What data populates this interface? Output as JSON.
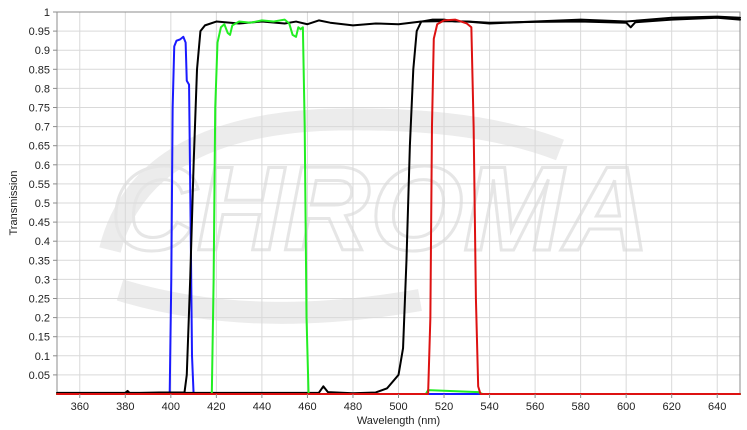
{
  "chart_data": {
    "type": "line",
    "title": "",
    "xlabel": "Wavelength (nm)",
    "ylabel": "Transmission",
    "xlim": [
      350,
      650
    ],
    "ylim": [
      0,
      1
    ],
    "grid": true,
    "legend": "none",
    "x_ticks": [
      360,
      380,
      400,
      420,
      440,
      460,
      480,
      500,
      520,
      540,
      560,
      580,
      600,
      620,
      640
    ],
    "y_ticks": [
      0.05,
      0.1,
      0.15,
      0.2,
      0.25,
      0.3,
      0.35,
      0.4,
      0.45,
      0.5,
      0.55,
      0.6,
      0.65,
      0.7,
      0.75,
      0.8,
      0.85,
      0.9,
      0.95,
      1
    ],
    "y_tick_labels": [
      "0.05",
      "0.1",
      "0.15",
      "0.2",
      "0.25",
      "0.3",
      "0.35",
      "0.4",
      "0.45",
      "0.5",
      "0.55",
      "0.6",
      "0.65",
      "0.7",
      "0.75",
      "0.8",
      "0.85",
      "0.9",
      "0.95",
      "1"
    ],
    "watermark": "CHROMA",
    "series": [
      {
        "color": "#1a1aff",
        "points": [
          [
            350,
            0.0
          ],
          [
            399.5,
            0.0
          ],
          [
            400.2,
            0.3
          ],
          [
            400.8,
            0.75
          ],
          [
            401.5,
            0.91
          ],
          [
            402.5,
            0.925
          ],
          [
            404,
            0.928
          ],
          [
            405.5,
            0.935
          ],
          [
            406.5,
            0.92
          ],
          [
            407,
            0.82
          ],
          [
            408,
            0.81
          ],
          [
            408.6,
            0.5
          ],
          [
            409.3,
            0.1
          ],
          [
            410,
            0.0
          ],
          [
            650,
            0.0
          ]
        ]
      },
      {
        "color": "#000000",
        "points": [
          [
            350,
            0.0
          ],
          [
            380,
            0.003
          ],
          [
            381,
            0.008
          ],
          [
            382,
            0.002
          ],
          [
            395,
            0.004
          ],
          [
            406,
            0.004
          ],
          [
            407,
            0.05
          ],
          [
            408.5,
            0.3
          ],
          [
            410,
            0.6
          ],
          [
            411.5,
            0.85
          ],
          [
            413,
            0.95
          ],
          [
            415,
            0.965
          ],
          [
            420,
            0.975
          ],
          [
            430,
            0.97
          ],
          [
            440,
            0.975
          ],
          [
            450,
            0.97
          ],
          [
            455,
            0.975
          ],
          [
            460,
            0.968
          ],
          [
            465,
            0.978
          ],
          [
            470,
            0.972
          ],
          [
            480,
            0.965
          ],
          [
            490,
            0.97
          ],
          [
            500,
            0.968
          ],
          [
            510,
            0.975
          ],
          [
            520,
            0.976
          ],
          [
            530,
            0.975
          ],
          [
            540,
            0.972
          ],
          [
            560,
            0.974
          ],
          [
            580,
            0.975
          ],
          [
            600,
            0.972
          ],
          [
            602,
            0.96
          ],
          [
            604,
            0.973
          ],
          [
            620,
            0.98
          ],
          [
            640,
            0.985
          ],
          [
            650,
            0.98
          ]
        ]
      },
      {
        "color": "#000000",
        "points": [
          [
            350,
            0.003
          ],
          [
            460,
            0.003
          ],
          [
            465,
            0.003
          ],
          [
            467,
            0.02
          ],
          [
            469,
            0.005
          ],
          [
            480,
            0.002
          ],
          [
            490,
            0.004
          ],
          [
            495,
            0.015
          ],
          [
            500,
            0.05
          ],
          [
            502,
            0.12
          ],
          [
            503.5,
            0.35
          ],
          [
            505,
            0.65
          ],
          [
            506.5,
            0.85
          ],
          [
            508,
            0.95
          ],
          [
            510,
            0.975
          ],
          [
            515,
            0.98
          ],
          [
            520,
            0.98
          ],
          [
            525,
            0.975
          ],
          [
            530,
            0.975
          ],
          [
            540,
            0.97
          ],
          [
            560,
            0.975
          ],
          [
            580,
            0.98
          ],
          [
            600,
            0.975
          ],
          [
            620,
            0.985
          ],
          [
            640,
            0.988
          ],
          [
            650,
            0.985
          ]
        ]
      },
      {
        "color": "#22ee22",
        "points": [
          [
            350,
            0.0
          ],
          [
            418,
            0.0
          ],
          [
            418.8,
            0.3
          ],
          [
            419.5,
            0.75
          ],
          [
            420.5,
            0.92
          ],
          [
            422,
            0.96
          ],
          [
            423.5,
            0.968
          ],
          [
            425,
            0.945
          ],
          [
            426,
            0.94
          ],
          [
            427,
            0.965
          ],
          [
            430,
            0.975
          ],
          [
            435,
            0.972
          ],
          [
            440,
            0.978
          ],
          [
            445,
            0.975
          ],
          [
            450,
            0.98
          ],
          [
            452,
            0.97
          ],
          [
            453.5,
            0.94
          ],
          [
            455,
            0.935
          ],
          [
            456,
            0.96
          ],
          [
            457,
            0.955
          ],
          [
            458,
            0.96
          ],
          [
            458.8,
            0.7
          ],
          [
            459.6,
            0.2
          ],
          [
            460.5,
            0.0
          ],
          [
            512,
            0.0
          ],
          [
            513,
            0.01
          ],
          [
            535,
            0.005
          ],
          [
            537,
            0.0
          ],
          [
            650,
            0.0
          ]
        ]
      },
      {
        "color": "#dd1111",
        "points": [
          [
            350,
            0.0
          ],
          [
            513,
            0.0
          ],
          [
            514,
            0.2
          ],
          [
            514.7,
            0.7
          ],
          [
            515.5,
            0.93
          ],
          [
            517,
            0.968
          ],
          [
            520,
            0.978
          ],
          [
            525,
            0.98
          ],
          [
            530,
            0.97
          ],
          [
            532,
            0.96
          ],
          [
            533,
            0.7
          ],
          [
            534,
            0.25
          ],
          [
            535,
            0.02
          ],
          [
            536,
            0.0
          ],
          [
            650,
            0.0
          ]
        ]
      }
    ]
  }
}
